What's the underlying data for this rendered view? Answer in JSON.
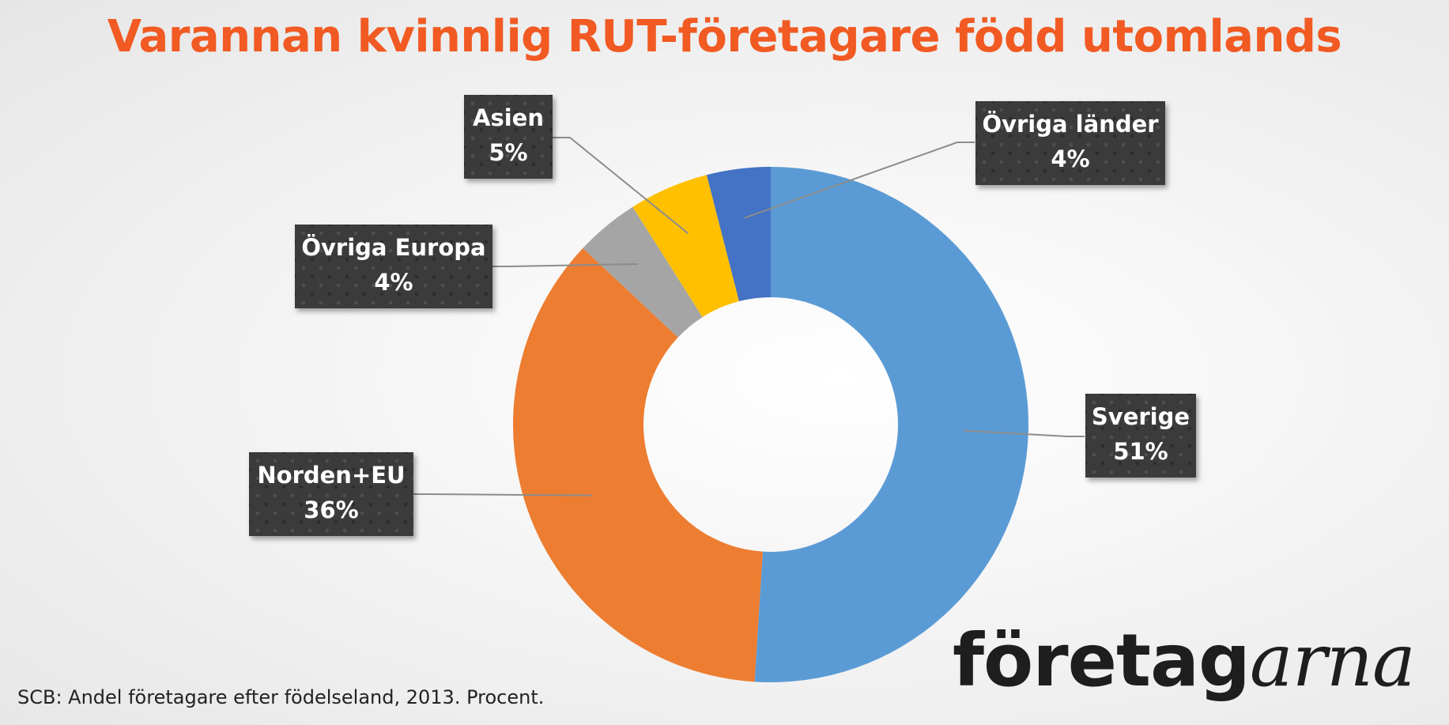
{
  "title": "Varannan kvinnlig RUT-företagare född utomlands",
  "source": "SCB: Andel företagare efter födelseland, 2013. Procent.",
  "logo": {
    "part1": "företag",
    "part2": "arna"
  },
  "chart_data": {
    "type": "pie",
    "donut": true,
    "categories": [
      "Sverige",
      "Norden+EU",
      "Övriga Europa",
      "Asien",
      "Övriga länder"
    ],
    "values": [
      51,
      36,
      4,
      5,
      4
    ],
    "value_labels": [
      "51%",
      "36%",
      "4%",
      "5%",
      "4%"
    ],
    "colors": [
      "#5b9bd5",
      "#ed7d31",
      "#a5a5a5",
      "#ffc000",
      "#4472c4"
    ],
    "order": "clockwise from top"
  }
}
